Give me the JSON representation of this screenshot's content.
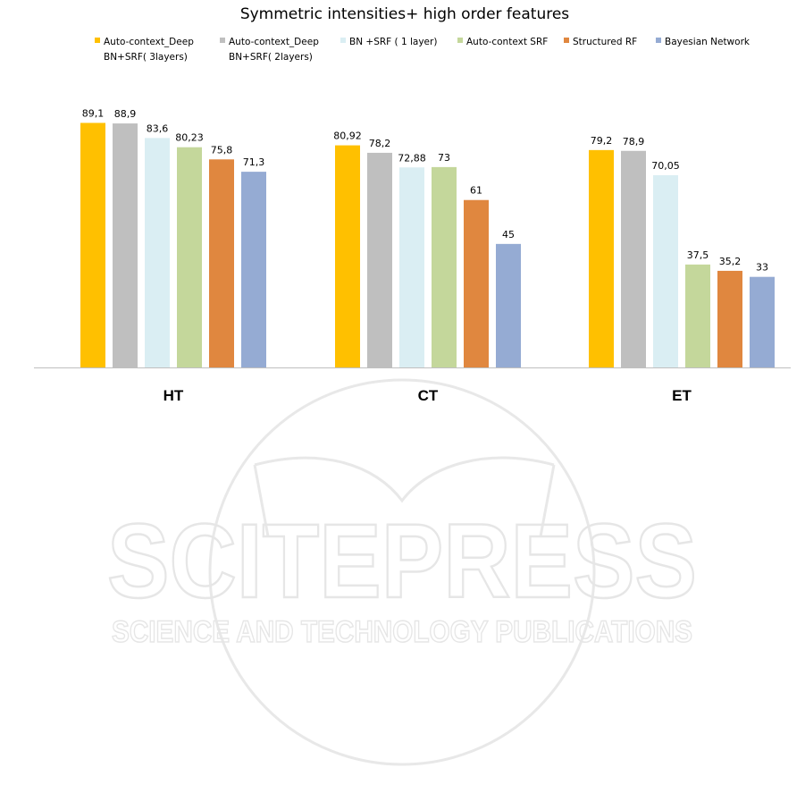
{
  "chart_data": {
    "type": "bar",
    "title": "Symmetric intensities+ high order features",
    "categories": [
      "HT",
      "CT",
      "ET"
    ],
    "series": [
      {
        "name": "Auto-context_Deep BN+SRF( 3layers)",
        "color": "#FFC000",
        "values": [
          89.1,
          80.92,
          79.2
        ],
        "labels": [
          "89,1",
          "80,92",
          "79,2"
        ]
      },
      {
        "name": "Auto-context_Deep BN+SRF( 2layers)",
        "color": "#BFBFBF",
        "values": [
          88.9,
          78.2,
          78.9
        ],
        "labels": [
          "88,9",
          "78,2",
          "78,9"
        ]
      },
      {
        "name": "BN +SRF ( 1 layer)",
        "color": "#DAEEF3",
        "values": [
          83.6,
          72.88,
          70.05
        ],
        "labels": [
          "83,6",
          "72,88",
          "70,05"
        ]
      },
      {
        "name": "Auto-context SRF",
        "color": "#C4D79B",
        "values": [
          80.23,
          73,
          37.5
        ],
        "labels": [
          "80,23",
          "73",
          "37,5"
        ]
      },
      {
        "name": "Structured RF",
        "color": "#E0873F",
        "values": [
          75.8,
          61,
          35.2
        ],
        "labels": [
          "75,8",
          "61",
          "35,2"
        ]
      },
      {
        "name": "Bayesian Network",
        "color": "#95ABD3",
        "values": [
          71.3,
          45,
          33
        ],
        "labels": [
          "71,3",
          "45",
          "33"
        ]
      }
    ],
    "legend_position": "top",
    "grid": false
  },
  "watermark": {
    "logo_text": "SCITEPRESS",
    "tagline": "SCIENCE AND TECHNOLOGY PUBLICATIONS"
  }
}
